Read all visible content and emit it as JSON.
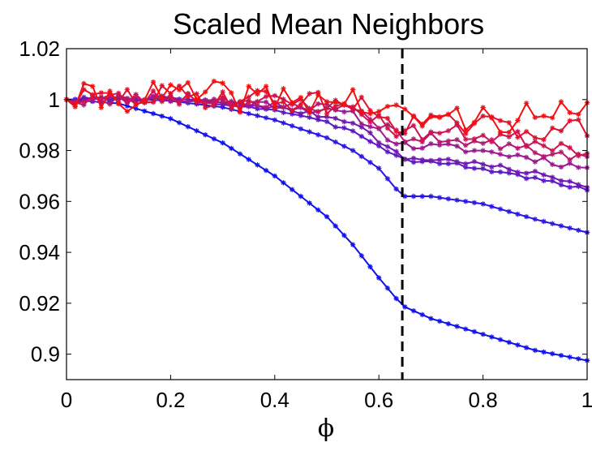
{
  "chart_data": {
    "type": "line",
    "title": "Scaled Mean Neighbors",
    "xlabel": "ϕ",
    "ylabel": "",
    "xlim": [
      0,
      1
    ],
    "ylim": [
      0.89,
      1.02
    ],
    "xticks": [
      0,
      0.2,
      0.4,
      0.6,
      0.8,
      1
    ],
    "xtick_labels": [
      "0",
      "0.2",
      "0.4",
      "0.6",
      "0.8",
      "1"
    ],
    "yticks": [
      0.9,
      0.92,
      0.94,
      0.96,
      0.98,
      1.0,
      1.02
    ],
    "ytick_labels": [
      "0.9",
      "0.92",
      "0.94",
      "0.96",
      "0.98",
      "1",
      "1.02"
    ],
    "grid": false,
    "vline": {
      "x": 0.645,
      "style": "dashed",
      "color": "#000000"
    },
    "series": [
      {
        "color": "#1010ee",
        "marker": "star",
        "curve": "smooth",
        "points": [
          [
            0,
            1.0
          ],
          [
            0.1,
            0.9985
          ],
          [
            0.2,
            0.9925
          ],
          [
            0.3,
            0.983
          ],
          [
            0.4,
            0.97
          ],
          [
            0.5,
            0.954
          ],
          [
            0.55,
            0.943
          ],
          [
            0.6,
            0.93
          ],
          [
            0.645,
            0.919
          ],
          [
            0.7,
            0.914
          ],
          [
            0.8,
            0.9078
          ],
          [
            0.9,
            0.9015
          ],
          [
            1.0,
            0.8975
          ]
        ]
      },
      {
        "color": "#2a14e6",
        "marker": "star",
        "curve": "smooth",
        "points": [
          [
            0,
            1.0
          ],
          [
            0.1,
            1.0005
          ],
          [
            0.2,
            0.9995
          ],
          [
            0.3,
            0.997
          ],
          [
            0.4,
            0.992
          ],
          [
            0.5,
            0.985
          ],
          [
            0.55,
            0.98
          ],
          [
            0.6,
            0.973
          ],
          [
            0.645,
            0.962
          ],
          [
            0.7,
            0.962
          ],
          [
            0.8,
            0.959
          ],
          [
            0.9,
            0.953
          ],
          [
            1.0,
            0.9478
          ]
        ]
      },
      {
        "color": "#5a18c8",
        "marker": "star",
        "curve": "noisy",
        "noise": 0.0007,
        "seed": 3,
        "points": [
          [
            0,
            1.0
          ],
          [
            0.2,
            1.0005
          ],
          [
            0.4,
            0.996
          ],
          [
            0.55,
            0.988
          ],
          [
            0.645,
            0.9765
          ],
          [
            0.75,
            0.9745
          ],
          [
            0.9,
            0.969
          ],
          [
            1.0,
            0.9645
          ]
        ]
      },
      {
        "color": "#7018b0",
        "marker": "star",
        "curve": "noisy",
        "noise": 0.001,
        "seed": 7,
        "points": [
          [
            0,
            1.0
          ],
          [
            0.2,
            1.0005
          ],
          [
            0.4,
            0.997
          ],
          [
            0.55,
            0.9915
          ],
          [
            0.645,
            0.977
          ],
          [
            0.75,
            0.976
          ],
          [
            0.9,
            0.971
          ],
          [
            1.0,
            0.9665
          ]
        ]
      },
      {
        "color": "#9a1890",
        "marker": "star",
        "curve": "noisy",
        "noise": 0.0016,
        "seed": 11,
        "points": [
          [
            0,
            1.0
          ],
          [
            0.2,
            1.0
          ],
          [
            0.4,
            0.998
          ],
          [
            0.55,
            0.994
          ],
          [
            0.645,
            0.982
          ],
          [
            0.75,
            0.981
          ],
          [
            0.9,
            0.977
          ],
          [
            1.0,
            0.973
          ]
        ]
      },
      {
        "color": "#b41870",
        "marker": "star",
        "curve": "noisy",
        "noise": 0.0022,
        "seed": 19,
        "points": [
          [
            0,
            1.0
          ],
          [
            0.2,
            1.0005
          ],
          [
            0.4,
            0.9985
          ],
          [
            0.55,
            0.9955
          ],
          [
            0.645,
            0.9855
          ],
          [
            0.75,
            0.984
          ],
          [
            0.9,
            0.98
          ],
          [
            1.0,
            0.9765
          ]
        ]
      },
      {
        "color": "#cc1450",
        "marker": "star",
        "curve": "noisy",
        "noise": 0.0032,
        "seed": 23,
        "points": [
          [
            0,
            1.0
          ],
          [
            0.2,
            1.001
          ],
          [
            0.4,
            0.999
          ],
          [
            0.55,
            0.997
          ],
          [
            0.645,
            0.987
          ],
          [
            0.75,
            0.987
          ],
          [
            0.9,
            0.984
          ],
          [
            1.0,
            0.98
          ]
        ]
      },
      {
        "color": "#e01030",
        "marker": "star",
        "curve": "noisy",
        "noise": 0.0045,
        "seed": 29,
        "points": [
          [
            0,
            1.0
          ],
          [
            0.2,
            1.0015
          ],
          [
            0.4,
            1.0
          ],
          [
            0.55,
            0.998
          ],
          [
            0.645,
            0.991
          ],
          [
            0.75,
            0.99
          ],
          [
            0.9,
            0.9885
          ],
          [
            1.0,
            0.9885
          ]
        ]
      },
      {
        "color": "#f21010",
        "marker": "star",
        "curve": "noisy",
        "noise": 0.006,
        "seed": 41,
        "points": [
          [
            0,
            1.0
          ],
          [
            0.2,
            1.002
          ],
          [
            0.4,
            1.0005
          ],
          [
            0.55,
            0.9995
          ],
          [
            0.645,
            0.9925
          ],
          [
            0.75,
            0.9925
          ],
          [
            0.9,
            0.993
          ],
          [
            1.0,
            0.9935
          ]
        ]
      }
    ]
  }
}
